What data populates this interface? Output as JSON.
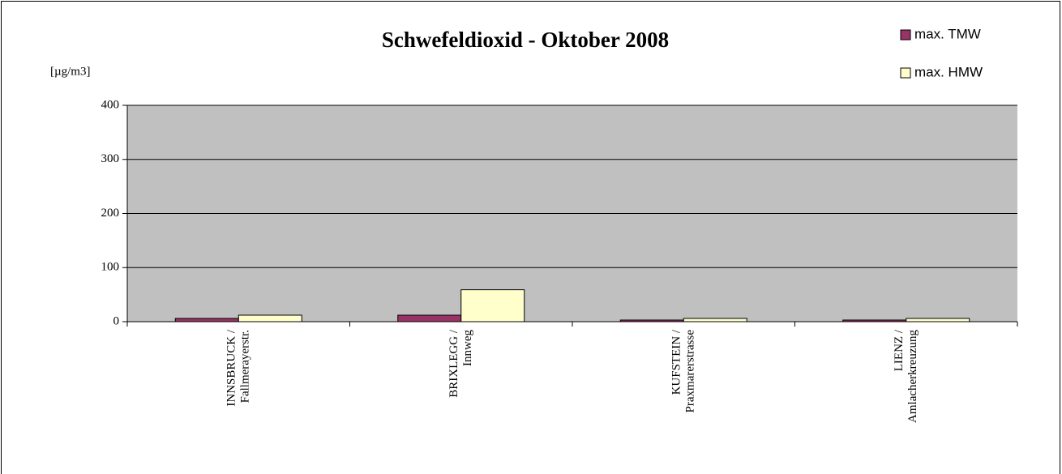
{
  "chart_data": {
    "type": "bar",
    "title": "Schwefeldioxid - Oktober 2008",
    "y_label": "[µg/m3]",
    "categories": [
      [
        "INNSBRUCK /",
        "Fallmerayerstr."
      ],
      [
        "BRIXLEGG /",
        "Innweg"
      ],
      [
        "KUFSTEIN /",
        "Praxmarerstrasse"
      ],
      [
        "LIENZ /",
        "Amlacherkreuzung"
      ]
    ],
    "series": [
      {
        "name": "max. TMW",
        "color": "#993366",
        "values": [
          6,
          12,
          3,
          3
        ]
      },
      {
        "name": "max. HMW",
        "color": "#ffffcc",
        "values": [
          12,
          59,
          6,
          6
        ]
      }
    ],
    "ylim": [
      0,
      400
    ],
    "yticks": [
      0,
      100,
      200,
      300,
      400
    ],
    "grid": true,
    "legend": "top-right",
    "plot_background": "#c0c0c0"
  }
}
